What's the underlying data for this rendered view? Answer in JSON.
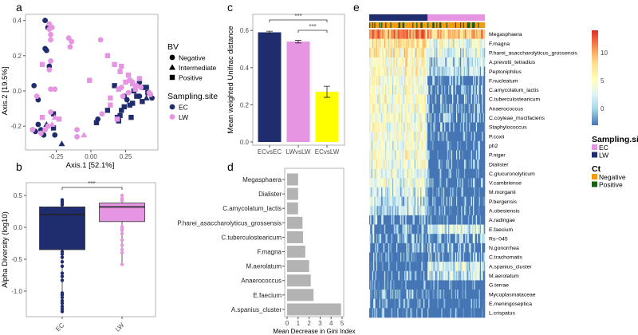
{
  "colors": {
    "EC": "#1f2c6e",
    "LW": "#e595e2",
    "ECvsLW": "#ffff00",
    "gray_bar": "#b3b3b3",
    "Negative": "#f39c12",
    "Positive": "#1a5e1a"
  },
  "chart_data": [
    {
      "panel": "a",
      "type": "scatter",
      "xlabel": "Axis.1   [52.1%]",
      "ylabel": "Axis.2   [19.5%]",
      "xlim": [
        -0.47,
        0.48
      ],
      "ylim": [
        -0.335,
        0.43
      ],
      "xticks": [
        "-0.25",
        "0.00",
        "0.25"
      ],
      "xtick_values": [
        -0.25,
        0,
        0.25
      ],
      "yticks": [
        "0.4",
        "0.2",
        "0.0",
        "-0.2"
      ],
      "ytick_values": [
        0.4,
        0.2,
        0,
        -0.2
      ],
      "legend": {
        "bv_title": "BV",
        "bv": [
          "Negative",
          "Intermediate",
          "Positive"
        ],
        "site_title": "Sampling.site",
        "sites": [
          "EC",
          "LW"
        ],
        "placement": "right"
      },
      "points": [
        [
          -0.33,
          0.4,
          "c",
          "EC"
        ],
        [
          -0.31,
          0.36,
          "c",
          "EC"
        ],
        [
          -0.33,
          0.24,
          "c",
          "EC"
        ],
        [
          -0.32,
          0.23,
          "c",
          "EC"
        ],
        [
          -0.3,
          0.14,
          "c",
          "EC"
        ],
        [
          -0.41,
          0.03,
          "c",
          "EC"
        ],
        [
          -0.38,
          -0.05,
          "c",
          "EC"
        ],
        [
          -0.38,
          -0.19,
          "c",
          "EC"
        ],
        [
          -0.42,
          -0.22,
          "c",
          "EC"
        ],
        [
          -0.4,
          -0.23,
          "c",
          "EC"
        ],
        [
          -0.36,
          -0.22,
          "c",
          "EC"
        ],
        [
          -0.34,
          -0.25,
          "c",
          "EC"
        ],
        [
          -0.26,
          -0.25,
          "c",
          "EC"
        ],
        [
          0.05,
          -0.16,
          "c",
          "EC"
        ],
        [
          0.24,
          -0.03,
          "c",
          "EC"
        ],
        [
          0.26,
          -0.05,
          "c",
          "EC"
        ],
        [
          0.35,
          0.05,
          "c",
          "EC"
        ],
        [
          0.44,
          -0.04,
          "c",
          "EC"
        ],
        [
          0.35,
          -0.03,
          "c",
          "EC"
        ],
        [
          -0.21,
          -0.3,
          "t",
          "EC"
        ],
        [
          0.4,
          -0.04,
          "t",
          "EC"
        ],
        [
          -0.32,
          -0.19,
          "t",
          "EC"
        ],
        [
          -0.27,
          -0.13,
          "s",
          "EC"
        ],
        [
          -0.27,
          -0.21,
          "s",
          "EC"
        ],
        [
          0.04,
          -0.18,
          "s",
          "EC"
        ],
        [
          0.17,
          0.03,
          "s",
          "EC"
        ],
        [
          0.12,
          -0.11,
          "s",
          "EC"
        ],
        [
          0.19,
          -0.15,
          "s",
          "EC"
        ],
        [
          0.21,
          -0.14,
          "s",
          "EC"
        ],
        [
          0.22,
          -0.11,
          "s",
          "EC"
        ],
        [
          0.24,
          -0.09,
          "s",
          "EC"
        ],
        [
          0.28,
          -0.08,
          "s",
          "EC"
        ],
        [
          0.3,
          -0.07,
          "s",
          "EC"
        ],
        [
          0.29,
          -0.15,
          "s",
          "EC"
        ],
        [
          0.2,
          -0.17,
          "s",
          "EC"
        ],
        [
          0.31,
          0.0,
          "s",
          "EC"
        ],
        [
          0.38,
          0.02,
          "s",
          "EC"
        ],
        [
          0.4,
          0.02,
          "s",
          "EC"
        ],
        [
          0.41,
          -0.01,
          "s",
          "EC"
        ],
        [
          0.33,
          -0.03,
          "s",
          "EC"
        ],
        [
          0.37,
          -0.06,
          "s",
          "EC"
        ],
        [
          -0.3,
          0.38,
          "c",
          "LW"
        ],
        [
          -0.28,
          0.36,
          "c",
          "LW"
        ],
        [
          -0.3,
          0.35,
          "c",
          "LW"
        ],
        [
          -0.29,
          0.32,
          "c",
          "LW"
        ],
        [
          -0.29,
          0.29,
          "c",
          "LW"
        ],
        [
          -0.16,
          0.3,
          "c",
          "LW"
        ],
        [
          -0.14,
          0.28,
          "c",
          "LW"
        ],
        [
          -0.15,
          0.25,
          "c",
          "LW"
        ],
        [
          0.07,
          0.29,
          "c",
          "LW"
        ],
        [
          -0.29,
          0.17,
          "c",
          "LW"
        ],
        [
          -0.3,
          0.12,
          "c",
          "LW"
        ],
        [
          -0.29,
          0.01,
          "c",
          "LW"
        ],
        [
          -0.26,
          0.01,
          "c",
          "LW"
        ],
        [
          -0.39,
          -0.03,
          "c",
          "LW"
        ],
        [
          -0.29,
          -0.12,
          "c",
          "LW"
        ],
        [
          0.08,
          -0.13,
          "c",
          "LW"
        ],
        [
          -0.1,
          -0.22,
          "c",
          "LW"
        ],
        [
          -0.1,
          -0.26,
          "c",
          "LW"
        ],
        [
          -0.31,
          -0.2,
          "c",
          "LW"
        ],
        [
          -0.33,
          -0.22,
          "c",
          "LW"
        ],
        [
          -0.36,
          -0.24,
          "c",
          "LW"
        ],
        [
          -0.42,
          -0.22,
          "c",
          "LW"
        ],
        [
          0.23,
          -0.03,
          "c",
          "LW"
        ],
        [
          0.22,
          0.02,
          "c",
          "LW"
        ],
        [
          0.27,
          -0.01,
          "c",
          "LW"
        ],
        [
          0.3,
          0.05,
          "c",
          "LW"
        ],
        [
          0.33,
          0.03,
          "c",
          "LW"
        ],
        [
          0.36,
          0.02,
          "c",
          "LW"
        ],
        [
          0.42,
          -0.01,
          "c",
          "LW"
        ],
        [
          0.43,
          -0.02,
          "c",
          "LW"
        ],
        [
          -0.26,
          -0.15,
          "t",
          "LW"
        ],
        [
          -0.05,
          -0.25,
          "t",
          "LW"
        ],
        [
          -0.28,
          -0.19,
          "t",
          "LW"
        ],
        [
          -0.35,
          0.15,
          "s",
          "LW"
        ],
        [
          -0.01,
          0.06,
          "s",
          "LW"
        ],
        [
          0.12,
          0.2,
          "s",
          "LW"
        ],
        [
          0.17,
          0.15,
          "s",
          "LW"
        ],
        [
          0.21,
          0.11,
          "s",
          "LW"
        ],
        [
          0.22,
          0.14,
          "s",
          "LW"
        ],
        [
          0.27,
          0.09,
          "s",
          "LW"
        ],
        [
          0.35,
          0.07,
          "s",
          "LW"
        ],
        [
          0.25,
          0.05,
          "s",
          "LW"
        ],
        [
          0.28,
          0.06,
          "s",
          "LW"
        ],
        [
          0.3,
          0.04,
          "s",
          "LW"
        ],
        [
          0.14,
          -0.04,
          "s",
          "LW"
        ],
        [
          0.14,
          -0.08,
          "s",
          "LW"
        ],
        [
          0.19,
          -0.16,
          "s",
          "LW"
        ],
        [
          -0.35,
          -0.15,
          "s",
          "LW"
        ],
        [
          -0.23,
          -0.16,
          "s",
          "LW"
        ],
        [
          0.2,
          0.01,
          "s",
          "LW"
        ],
        [
          0.32,
          0.01,
          "s",
          "LW"
        ]
      ]
    },
    {
      "panel": "b",
      "type": "box",
      "ylabel": "Alpha Diversity (log10)",
      "categories": [
        "EC",
        "LW"
      ],
      "yticks": [
        "0.5",
        "0.0",
        "-0.5",
        "-1.0"
      ],
      "ytick_values": [
        0.5,
        0,
        -0.5,
        -1.0
      ],
      "significance": "***",
      "boxes": [
        {
          "name": "EC",
          "q1": -0.35,
          "median": 0.2,
          "q3": 0.32,
          "outliers": [
            0.43,
            0.4,
            0.37,
            0.35,
            -0.38,
            -0.42,
            -0.47,
            -0.54,
            -0.61,
            -0.72,
            -0.77,
            -0.83,
            -1.03,
            -1.06,
            -1.1,
            -1.15,
            -1.19,
            -1.24,
            -1.28,
            -1.32
          ]
        },
        {
          "name": "LW",
          "q1": 0.09,
          "median": 0.32,
          "q3": 0.38,
          "outliers": [
            0.5,
            0.45,
            0.42,
            0.01,
            -0.02,
            -0.05,
            -0.1,
            -0.2,
            -0.28,
            -0.35,
            -0.4,
            -0.58
          ]
        }
      ]
    },
    {
      "panel": "c",
      "type": "bar",
      "ylabel": "Mean weighted Unifrac distance",
      "categories": [
        "ECvsEC",
        "LWvsLW",
        "ECvsLW"
      ],
      "values": [
        0.59,
        0.54,
        0.27
      ],
      "errors": [
        0.006,
        0.007,
        0.03
      ],
      "yticks": [
        "0.0",
        "0.2",
        "0.4",
        "0.6"
      ],
      "ytick_values": [
        0,
        0.2,
        0.4,
        0.6
      ],
      "significance": [
        "***",
        "***"
      ]
    },
    {
      "panel": "d",
      "type": "bar",
      "xlabel": "Mean Decrease in Gini Index",
      "categories": [
        "Megasphaera",
        "Dialister",
        "C.amycolatum_lactis",
        "P.harei_asaccharolyticus_grossensis",
        "C.tuberculostearicum",
        "F.magna",
        "M.aerolatum",
        "Anaerococcus",
        "E.faecium",
        "A.spanius_cluster"
      ],
      "values": [
        1.0,
        1.0,
        1.0,
        1.4,
        1.45,
        1.65,
        2.0,
        2.15,
        2.4,
        4.9
      ],
      "xticks": [
        "0",
        "1",
        "2",
        "3",
        "4",
        "5"
      ]
    },
    {
      "panel": "e",
      "type": "heatmap",
      "rows": [
        "Megasphaera",
        "F.magna",
        "P.harei_asaccharolyticus_grossensis",
        "A.prevotii_tetradius",
        "Peptoniphilus",
        "F.nucleatum",
        "C.amycolatum_lactis",
        "C.tuberculostearicum",
        "Anaerococcus",
        "C.coyleae_mucifaciens",
        "Staphylococcus",
        "P.coxii",
        "ph2",
        "P.niger",
        "Dialister",
        "C.glucuronolyticum",
        "V.cambriense",
        "M.morganii",
        "P.bergensis",
        "A.obesiensis",
        "A.radingae",
        "E.faecium",
        "Rs−045",
        "N.gonorrhea",
        "C.trachomatis",
        "A.spanius_cluster",
        "M.aerolatum",
        "G.terrae",
        "Mycoplasmataceae",
        "E.meningoseptica",
        "L.crispatus"
      ],
      "group_mean_left": [
        11,
        7,
        6,
        5,
        5,
        4,
        4,
        4,
        4,
        4,
        4,
        4,
        4,
        4,
        4,
        3,
        3,
        2,
        1,
        1,
        0,
        -1,
        -1,
        -1,
        -2,
        -2,
        -2,
        -3,
        -1,
        -1,
        -2
      ],
      "group_mean_right": [
        9,
        4,
        2,
        1,
        1,
        -1,
        0,
        0,
        0,
        0,
        -1,
        -2,
        -2,
        -2,
        -2,
        -2,
        -2,
        -2,
        -2,
        -2,
        -2,
        2,
        0,
        0,
        0,
        2,
        1,
        -2,
        -3,
        -3,
        -3
      ],
      "color_range": [
        -3,
        14
      ],
      "colorbar_ticks": [
        "10",
        "5",
        "0"
      ],
      "colorbar_tick_values": [
        10,
        5,
        0
      ],
      "legend": {
        "site_title": "Sampling.site",
        "sites": [
          "EC",
          "LW"
        ],
        "ct_title": "Ct",
        "ct": [
          "Negative",
          "Positive"
        ]
      }
    }
  ],
  "panel_labels": [
    "a",
    "b",
    "c",
    "d",
    "e"
  ]
}
